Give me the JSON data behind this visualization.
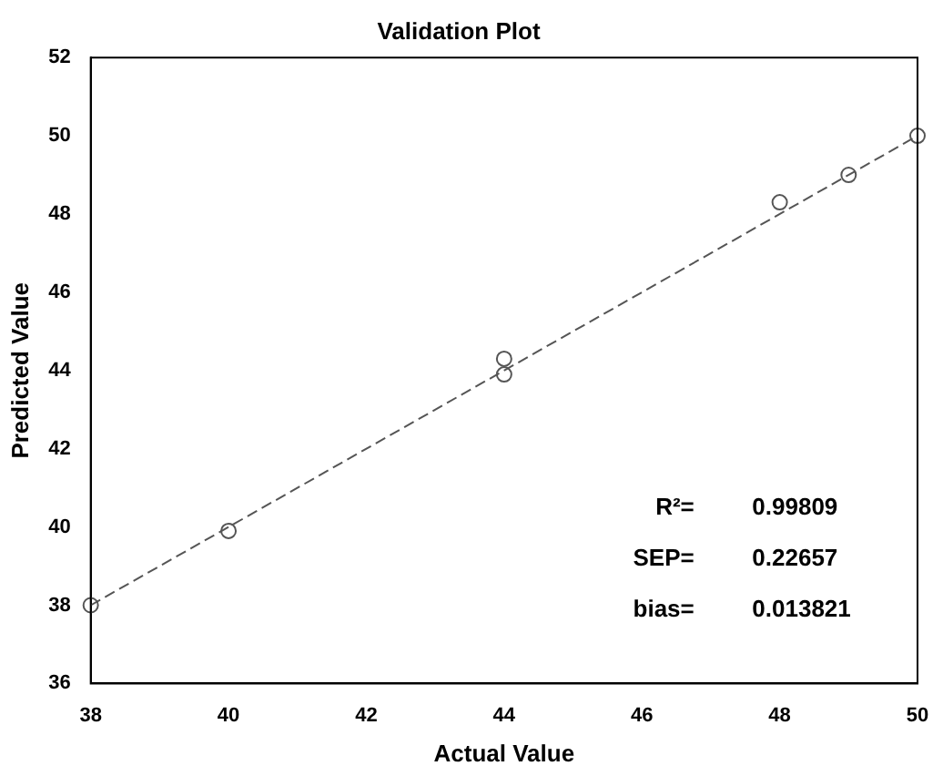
{
  "chart_data": {
    "type": "scatter",
    "title": "Validation Plot",
    "xlabel": "Actual Value",
    "ylabel": "Predicted Value",
    "xlim": [
      38,
      50
    ],
    "xticks": [
      38,
      40,
      42,
      44,
      46,
      48,
      50
    ],
    "ylim": [
      36,
      52
    ],
    "yticks": [
      36,
      38,
      40,
      42,
      44,
      46,
      48,
      50,
      52
    ],
    "grid": false,
    "legend": false,
    "marker": "circle",
    "series": [
      {
        "color": "#555555",
        "x": [
          38,
          40,
          44,
          44,
          48,
          49,
          50
        ],
        "values": [
          38,
          39.9,
          44.3,
          43.9,
          48.3,
          49,
          50
        ]
      },
      {
        "type": "line",
        "color": "#555555",
        "line_style": "dashed",
        "marker": "none",
        "x": [
          38,
          50
        ],
        "values": [
          38,
          50
        ]
      }
    ],
    "annotations": [
      "R²=",
      "0.99809",
      "SEP=",
      "0.22657",
      "bias=",
      "0.013821"
    ]
  }
}
